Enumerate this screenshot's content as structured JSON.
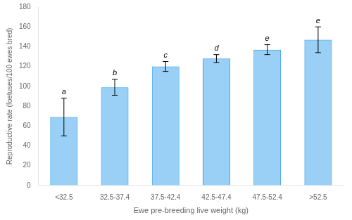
{
  "chart_data": {
    "type": "bar",
    "categories": [
      "<32.5",
      "32.5-37.4",
      "37.5-42.4",
      "42.5-47.4",
      "47.5-52.4",
      ">52.5"
    ],
    "values": [
      69,
      99,
      120,
      128,
      137,
      147
    ],
    "errors_lower": [
      19,
      8,
      5,
      4,
      5,
      13
    ],
    "errors_upper": [
      19,
      8,
      5,
      4,
      5,
      13
    ],
    "annotations": [
      "a",
      "b",
      "c",
      "d",
      "e",
      "e"
    ],
    "xlabel": "Ewe pre-breeding live weight (kg)",
    "ylabel": "Reproductive rate (foetuses/100 ewes bred)",
    "ylim": [
      0,
      180
    ],
    "yticks": [
      0,
      20,
      40,
      60,
      80,
      100,
      120,
      140,
      160,
      180
    ],
    "grid": false
  }
}
